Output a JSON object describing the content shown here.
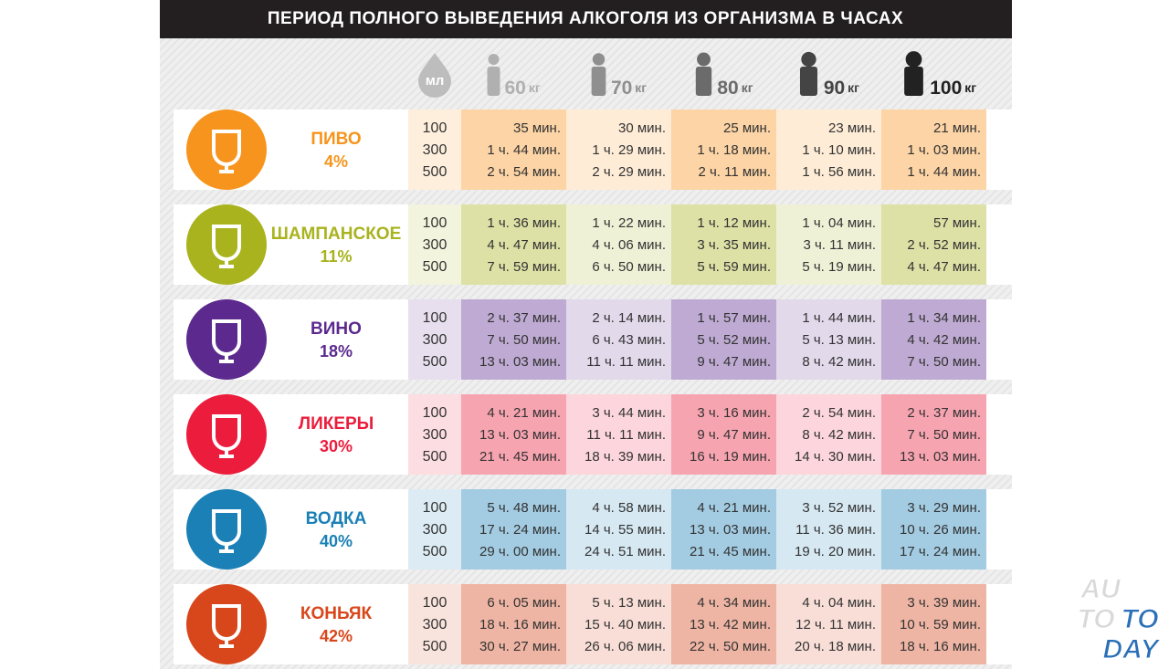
{
  "header": {
    "title": "ПЕРИОД ПОЛНОГО ВЫВЕДЕНИЯ АЛКОГОЛЯ ИЗ ОРГАНИЗМА В ЧАСАХ"
  },
  "columns": {
    "volume_unit": "мл",
    "weights": [
      {
        "value": "60",
        "unit": "кг"
      },
      {
        "value": "70",
        "unit": "кг"
      },
      {
        "value": "80",
        "unit": "кг"
      },
      {
        "value": "90",
        "unit": "кг"
      },
      {
        "value": "100",
        "unit": "кг"
      }
    ]
  },
  "drinks": [
    {
      "name": "ПИВО",
      "strength": "4%",
      "color": "#f7941d",
      "volumes": [
        100,
        300,
        500
      ],
      "times": [
        [
          "35 мин.",
          "30 мин.",
          "25 мин.",
          "23 мин.",
          "21 мин."
        ],
        [
          "1 ч. 44 мин.",
          "1 ч. 29 мин.",
          "1 ч. 18 мин.",
          "1 ч. 10 мин.",
          "1 ч. 03 мин."
        ],
        [
          "2 ч. 54 мин.",
          "2 ч. 29 мин.",
          "2 ч. 11 мин.",
          "1 ч. 56 мин.",
          "1 ч. 44 мин."
        ]
      ]
    },
    {
      "name": "ШАМПАНСКОЕ",
      "strength": "11%",
      "color": "#a9b31e",
      "volumes": [
        100,
        300,
        500
      ],
      "times": [
        [
          "1 ч. 36 мин.",
          "1 ч. 22 мин.",
          "1 ч. 12 мин.",
          "1 ч. 04 мин.",
          "57 мин."
        ],
        [
          "4 ч. 47 мин.",
          "4 ч. 06 мин.",
          "3 ч. 35 мин.",
          "3 ч. 11 мин.",
          "2 ч. 52 мин."
        ],
        [
          "7 ч. 59 мин.",
          "6 ч. 50 мин.",
          "5 ч. 59 мин.",
          "5 ч. 19 мин.",
          "4 ч. 47 мин."
        ]
      ]
    },
    {
      "name": "ВИНО",
      "strength": "18%",
      "color": "#5c2a8e",
      "volumes": [
        100,
        300,
        500
      ],
      "times": [
        [
          "2 ч. 37 мин.",
          "2 ч. 14 мин.",
          "1 ч. 57 мин.",
          "1 ч. 44 мин.",
          "1 ч. 34 мин."
        ],
        [
          "7 ч. 50 мин.",
          "6 ч. 43 мин.",
          "5 ч. 52 мин.",
          "5 ч. 13 мин.",
          "4 ч. 42 мин."
        ],
        [
          "13 ч. 03 мин.",
          "11 ч. 11 мин.",
          "9 ч. 47 мин.",
          "8 ч. 42 мин.",
          "7 ч. 50 мин."
        ]
      ]
    },
    {
      "name": "ЛИКЕРЫ",
      "strength": "30%",
      "color": "#ec1c3c",
      "volumes": [
        100,
        300,
        500
      ],
      "times": [
        [
          "4 ч. 21 мин.",
          "3 ч. 44 мин.",
          "3 ч. 16 мин.",
          "2 ч. 54 мин.",
          "2 ч. 37 мин."
        ],
        [
          "13 ч. 03 мин.",
          "11 ч. 11 мин.",
          "9 ч. 47 мин.",
          "8 ч. 42 мин.",
          "7 ч. 50 мин."
        ],
        [
          "21 ч. 45 мин.",
          "18 ч. 39 мин.",
          "16 ч. 19 мин.",
          "14 ч. 30 мин.",
          "13 ч. 03 мин."
        ]
      ]
    },
    {
      "name": "ВОДКА",
      "strength": "40%",
      "color": "#1a80b6",
      "volumes": [
        100,
        300,
        500
      ],
      "times": [
        [
          "5 ч. 48 мин.",
          "4 ч. 58 мин.",
          "4 ч. 21 мин.",
          "3 ч. 52 мин.",
          "3 ч. 29 мин."
        ],
        [
          "17 ч. 24 мин.",
          "14 ч. 55 мин.",
          "13 ч. 03 мин.",
          "11 ч. 36 мин.",
          "10 ч. 26 мин."
        ],
        [
          "29 ч. 00 мин.",
          "24 ч. 51 мин.",
          "21 ч. 45 мин.",
          "19 ч. 20 мин.",
          "17 ч. 24 мин."
        ]
      ]
    },
    {
      "name": "КОНЬЯК",
      "strength": "42%",
      "color": "#d8471b",
      "volumes": [
        100,
        300,
        500
      ],
      "times": [
        [
          "6 ч. 05 мин.",
          "5 ч. 13 мин.",
          "4 ч. 34 мин.",
          "4 ч. 04 мин.",
          "3 ч. 39 мин."
        ],
        [
          "18 ч. 16 мин.",
          "15 ч. 40 мин.",
          "13 ч. 42 мин.",
          "12 ч. 11 мин.",
          "10 ч. 59 мин."
        ],
        [
          "30 ч. 27 мин.",
          "26 ч. 06 мин.",
          "22 ч. 50 мин.",
          "20 ч. 18 мин.",
          "18 ч. 16 мин."
        ]
      ]
    }
  ],
  "watermark": [
    "AU",
    "TO",
    "TO",
    "DAY"
  ]
}
